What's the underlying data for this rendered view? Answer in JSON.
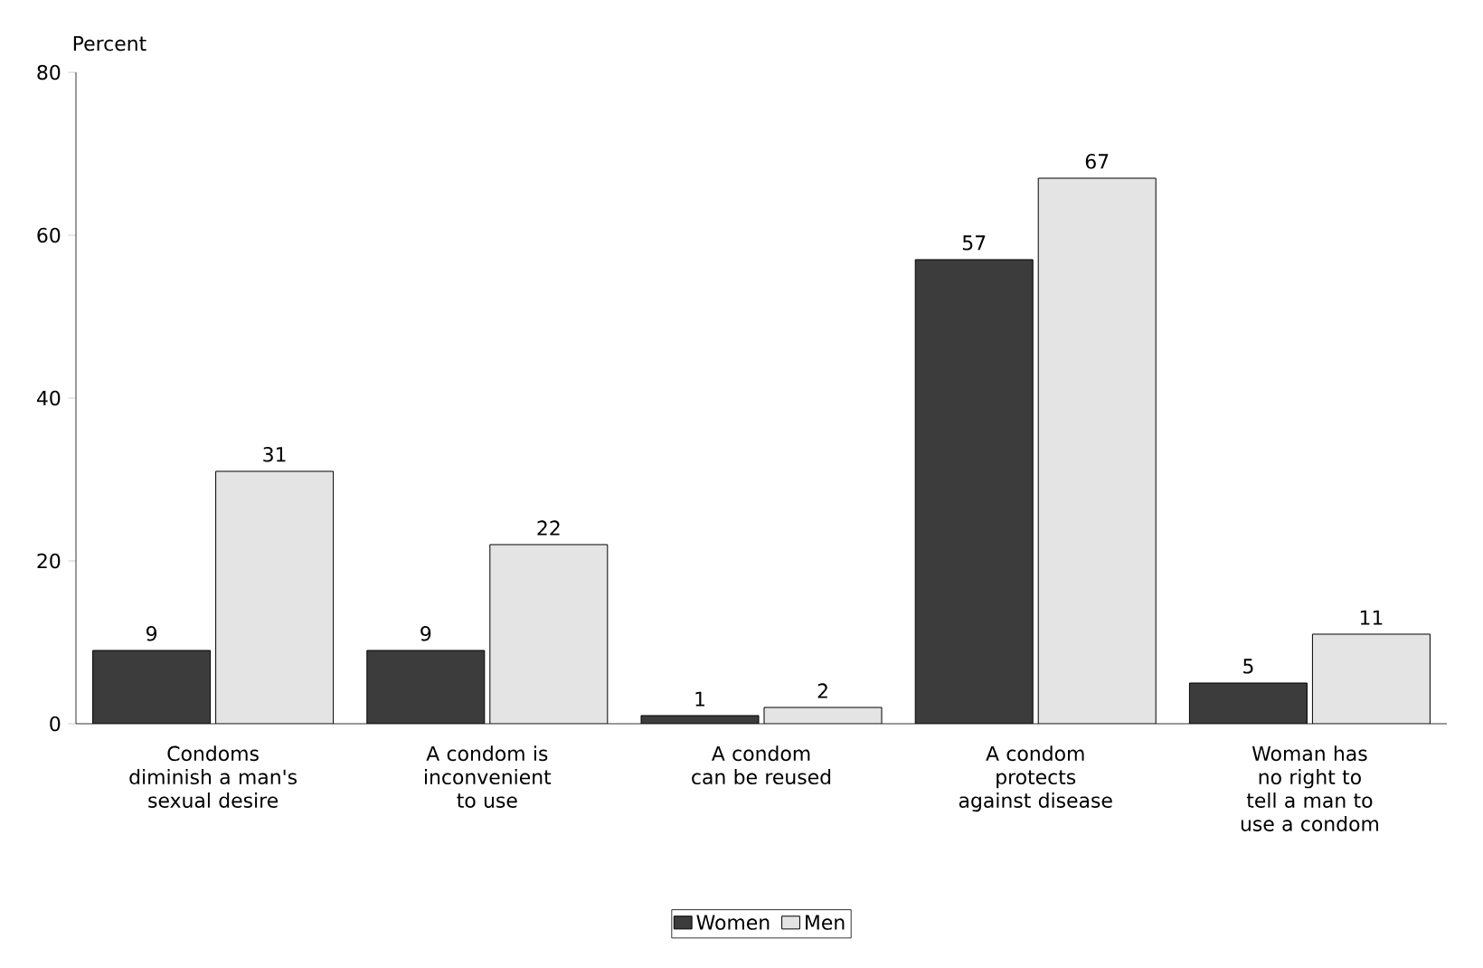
{
  "chart_data": {
    "type": "bar",
    "ylabel": "Percent",
    "categories": [
      "Condoms diminish a man's sexual desire",
      "A condom is inconvenient to use",
      "A condom can be reused",
      "A condom protects against disease",
      "Woman has no right to tell a man to use a condom"
    ],
    "series": [
      {
        "name": "Women",
        "color": "#3c3c3c",
        "values": [
          9,
          9,
          1,
          57,
          5
        ]
      },
      {
        "name": "Men",
        "color": "#e4e4e4",
        "values": [
          31,
          22,
          2,
          67,
          11
        ]
      }
    ],
    "ylim": [
      0,
      80
    ],
    "yticks": [
      0,
      20,
      40,
      60,
      80
    ],
    "data_labels": true,
    "legend": "bottom",
    "grid": false
  }
}
